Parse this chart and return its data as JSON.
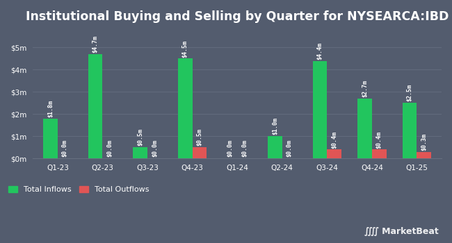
{
  "title": "Institutional Buying and Selling by Quarter for NYSEARCA:IBD",
  "quarters": [
    "Q1-23",
    "Q2-23",
    "Q3-23",
    "Q4-23",
    "Q1-24",
    "Q2-24",
    "Q3-24",
    "Q4-24",
    "Q1-25"
  ],
  "inflows": [
    1.8,
    4.7,
    0.5,
    4.5,
    0.0,
    1.0,
    4.4,
    2.7,
    2.5
  ],
  "outflows": [
    0.0,
    0.0,
    0.0,
    0.5,
    0.0,
    0.0,
    0.4,
    0.4,
    0.3
  ],
  "inflow_labels": [
    "$1.8m",
    "$4.7m",
    "$0.5m",
    "$4.5m",
    "$0.0m",
    "$1.0m",
    "$4.4m",
    "$2.7m",
    "$2.5m"
  ],
  "outflow_labels": [
    "$0.0m",
    "$0.0m",
    "$0.0m",
    "$0.5m",
    "$0.0m",
    "$0.0m",
    "$0.4m",
    "$0.4m",
    "$0.3m"
  ],
  "inflow_color": "#22c55e",
  "outflow_color": "#e05555",
  "bg_color": "#535c6e",
  "text_color": "#ffffff",
  "grid_color": "#666f80",
  "bar_width": 0.32,
  "ylim": [
    0,
    5.8
  ],
  "yticks": [
    0,
    1,
    2,
    3,
    4,
    5
  ],
  "ytick_labels": [
    "$0m",
    "$1m",
    "$2m",
    "$3m",
    "$4m",
    "$5m"
  ],
  "legend_inflow": "Total Inflows",
  "legend_outflow": "Total Outflows",
  "title_fontsize": 12.5,
  "label_fontsize": 6.0,
  "tick_fontsize": 7.5,
  "legend_fontsize": 8,
  "marketbeat_fontsize": 9
}
